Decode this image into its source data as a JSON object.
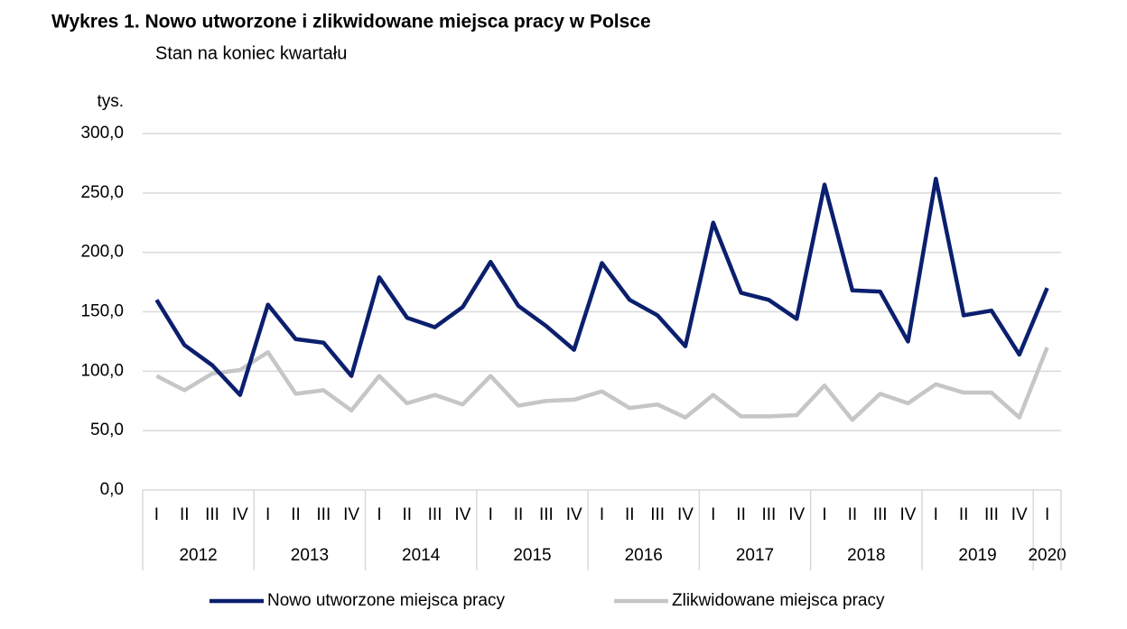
{
  "chart_data": {
    "type": "line",
    "title": "Wykres 1. Nowo utworzone i zlikwidowane miejsca pracy w Polsce",
    "subtitle": "Stan na koniec kwartału",
    "y_unit": "tys.",
    "categories": [
      "I",
      "II",
      "III",
      "IV",
      "I",
      "II",
      "III",
      "IV",
      "I",
      "II",
      "III",
      "IV",
      "I",
      "II",
      "III",
      "IV",
      "I",
      "II",
      "III",
      "IV",
      "I",
      "II",
      "III",
      "IV",
      "I",
      "II",
      "III",
      "IV",
      "I",
      "II",
      "III",
      "IV",
      "I"
    ],
    "year_labels": [
      "2012",
      "2013",
      "2014",
      "2015",
      "2016",
      "2017",
      "2018",
      "2019",
      "2020"
    ],
    "series": [
      {
        "name": "Nowo utworzone miejsca pracy",
        "color": "#0b1f6e",
        "values": [
          160,
          122,
          105,
          80,
          156,
          127,
          124,
          96,
          179,
          145,
          137,
          154,
          192,
          155,
          138,
          118,
          191,
          160,
          147,
          121,
          225,
          166,
          160,
          144,
          257,
          168,
          167,
          125,
          262,
          147,
          151,
          114,
          170
        ]
      },
      {
        "name": "Zlikwidowane miejsca pracy",
        "color": "#c6c6c6",
        "values": [
          96,
          84,
          98,
          101,
          116,
          81,
          84,
          67,
          96,
          73,
          80,
          72,
          96,
          71,
          75,
          76,
          83,
          69,
          72,
          61,
          80,
          62,
          62,
          63,
          88,
          59,
          81,
          73,
          89,
          82,
          82,
          61,
          120
        ]
      }
    ],
    "ylim": [
      0,
      300
    ],
    "yticks": [
      {
        "value": 0,
        "label": "0,0"
      },
      {
        "value": 50,
        "label": "50,0"
      },
      {
        "value": 100,
        "label": "100,0"
      },
      {
        "value": 150,
        "label": "150,0"
      },
      {
        "value": 200,
        "label": "200,0"
      },
      {
        "value": 250,
        "label": "250,0"
      },
      {
        "value": 300,
        "label": "300,0"
      }
    ],
    "grid": true
  }
}
